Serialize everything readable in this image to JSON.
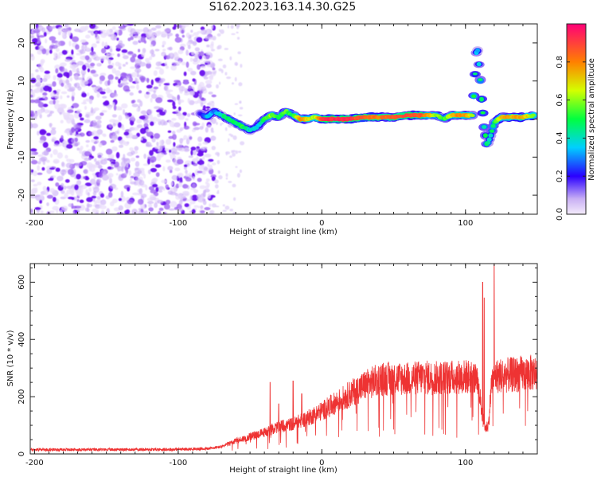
{
  "title": "S162.2023.163.14.30.G25",
  "chart_data": [
    {
      "type": "heatmap",
      "xlabel": "Height of straight line (km)",
      "ylabel": "Frequency (Hz)",
      "xlim": [
        -203,
        150
      ],
      "ylim": [
        -25,
        25
      ],
      "x_ticks": [
        "-200",
        "-100",
        "0",
        "100"
      ],
      "y_ticks": [
        "-20",
        "-10",
        "0",
        "10",
        "20"
      ],
      "colorbar": {
        "label": "Normalized spectral amplitude",
        "range": [
          0,
          1
        ],
        "ticks": [
          "0.0",
          "0.2",
          "0.4",
          "0.6",
          "0.8"
        ]
      },
      "noise_region": {
        "x": [
          -203,
          -75
        ],
        "y": [
          -25,
          25
        ]
      },
      "ridge": [
        {
          "x": -85,
          "y": 1.5,
          "a": 0.15
        },
        {
          "x": -80,
          "y": 0.5,
          "a": 0.35
        },
        {
          "x": -75,
          "y": 2.0,
          "a": 0.3
        },
        {
          "x": -70,
          "y": 1.0,
          "a": 0.4
        },
        {
          "x": -65,
          "y": 0.0,
          "a": 0.5
        },
        {
          "x": -60,
          "y": -1.0,
          "a": 0.45
        },
        {
          "x": -55,
          "y": -2.0,
          "a": 0.5
        },
        {
          "x": -50,
          "y": -3.0,
          "a": 0.4
        },
        {
          "x": -45,
          "y": -2.0,
          "a": 0.35
        },
        {
          "x": -40,
          "y": 0.0,
          "a": 0.5
        },
        {
          "x": -35,
          "y": 1.0,
          "a": 0.6
        },
        {
          "x": -30,
          "y": 0.5,
          "a": 0.5
        },
        {
          "x": -25,
          "y": 2.0,
          "a": 0.55
        },
        {
          "x": -20,
          "y": 1.0,
          "a": 0.5
        },
        {
          "x": -15,
          "y": 0.0,
          "a": 0.8
        },
        {
          "x": -10,
          "y": 0.0,
          "a": 0.7
        },
        {
          "x": -5,
          "y": 0.5,
          "a": 0.6
        },
        {
          "x": 0,
          "y": 0.0,
          "a": 0.9
        },
        {
          "x": 10,
          "y": 0.0,
          "a": 0.95
        },
        {
          "x": 20,
          "y": 0.0,
          "a": 0.9
        },
        {
          "x": 30,
          "y": 0.5,
          "a": 0.85
        },
        {
          "x": 40,
          "y": 0.5,
          "a": 0.8
        },
        {
          "x": 50,
          "y": 0.5,
          "a": 0.85
        },
        {
          "x": 60,
          "y": 1.0,
          "a": 0.9
        },
        {
          "x": 70,
          "y": 1.0,
          "a": 0.85
        },
        {
          "x": 80,
          "y": 1.0,
          "a": 0.6
        },
        {
          "x": 85,
          "y": 0.0,
          "a": 0.5
        },
        {
          "x": 90,
          "y": 1.0,
          "a": 0.7
        },
        {
          "x": 95,
          "y": 1.0,
          "a": 0.8
        },
        {
          "x": 100,
          "y": 1.0,
          "a": 0.8
        },
        {
          "x": 105,
          "y": 1.0,
          "a": 0.6
        },
        {
          "x": 108,
          "y": 20.0,
          "a": 0.3
        },
        {
          "x": 109,
          "y": 16.0,
          "a": 0.35
        },
        {
          "x": 110,
          "y": 12.0,
          "a": 0.45
        },
        {
          "x": 111,
          "y": 6.0,
          "a": 0.5
        },
        {
          "x": 112,
          "y": 2.0,
          "a": 0.5
        },
        {
          "x": 113,
          "y": -2.0,
          "a": 0.45
        },
        {
          "x": 115,
          "y": -7.0,
          "a": 0.5
        },
        {
          "x": 117,
          "y": -5.0,
          "a": 0.4
        },
        {
          "x": 120,
          "y": -1.0,
          "a": 0.5
        },
        {
          "x": 125,
          "y": 0.5,
          "a": 0.7
        },
        {
          "x": 130,
          "y": 0.5,
          "a": 0.75
        },
        {
          "x": 140,
          "y": 0.5,
          "a": 0.75
        },
        {
          "x": 148,
          "y": 1.0,
          "a": 0.6
        }
      ]
    },
    {
      "type": "line",
      "xlabel": "Height of straight line (km)",
      "ylabel": "SNR (10 * v/v)",
      "xlim": [
        -203,
        150
      ],
      "ylim": [
        0,
        665
      ],
      "x_ticks": [
        "-200",
        "-100",
        "0",
        "100"
      ],
      "y_ticks": [
        "0",
        "200",
        "400",
        "600"
      ],
      "color": "#ee3333",
      "envelope": {
        "x": [
          -203,
          -150,
          -100,
          -80,
          -70,
          -60,
          -50,
          -40,
          -30,
          -20,
          -10,
          0,
          10,
          20,
          30,
          40,
          50,
          60,
          70,
          80,
          90,
          100,
          105,
          108,
          110,
          112,
          114,
          116,
          118,
          120,
          125,
          130,
          140,
          150
        ],
        "y": [
          15,
          15,
          16,
          18,
          25,
          45,
          60,
          75,
          95,
          105,
          125,
          150,
          180,
          210,
          240,
          260,
          265,
          262,
          268,
          265,
          268,
          270,
          270,
          250,
          200,
          120,
          90,
          100,
          240,
          270,
          275,
          275,
          280,
          285
        ]
      },
      "spikes": [
        {
          "x": -36,
          "y": 250
        },
        {
          "x": -30,
          "y": 175
        },
        {
          "x": -20,
          "y": 255
        },
        {
          "x": -14,
          "y": 210
        },
        {
          "x": 112,
          "y": 600
        },
        {
          "x": 113,
          "y": 545
        },
        {
          "x": 120,
          "y": 665
        }
      ]
    }
  ]
}
